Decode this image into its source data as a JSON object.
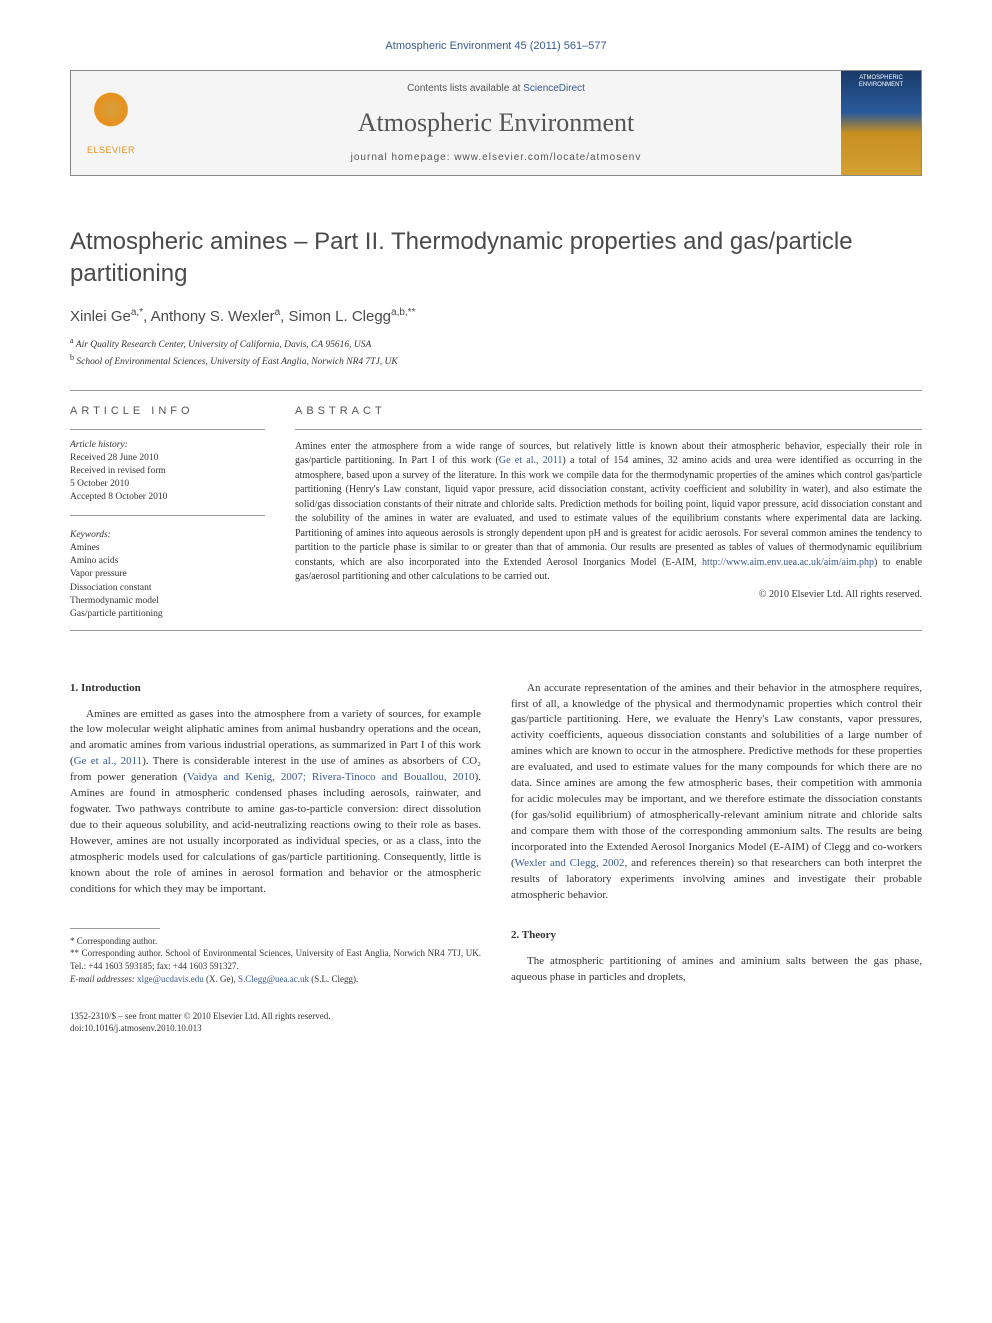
{
  "header": {
    "citation": "Atmospheric Environment 45 (2011) 561–577",
    "contents_prefix": "Contents lists available at ",
    "contents_link": "ScienceDirect",
    "journal_name": "Atmospheric Environment",
    "homepage_prefix": "journal homepage: ",
    "homepage_url": "www.elsevier.com/locate/atmosenv",
    "elsevier_text": "ELSEVIER",
    "cover_text": "ATMOSPHERIC ENVIRONMENT"
  },
  "title": "Atmospheric amines – Part II. Thermodynamic properties and gas/particle partitioning",
  "authors_html": "Xinlei Ge<sup>a,*</sup>, Anthony S. Wexler<sup>a</sup>, Simon L. Clegg<sup>a,b,**</sup>",
  "affiliations": {
    "a": "Air Quality Research Center, University of California, Davis, CA 95616, USA",
    "b": "School of Environmental Sciences, University of East Anglia, Norwich NR4 7TJ, UK"
  },
  "info": {
    "article_info_label": "ARTICLE INFO",
    "abstract_label": "ABSTRACT",
    "history_label": "Article history:",
    "history": {
      "received": "Received 28 June 2010",
      "revised1": "Received in revised form",
      "revised2": "5 October 2010",
      "accepted": "Accepted 8 October 2010"
    },
    "keywords_label": "Keywords:",
    "keywords": [
      "Amines",
      "Amino acids",
      "Vapor pressure",
      "Dissociation constant",
      "Thermodynamic model",
      "Gas/particle partitioning"
    ]
  },
  "abstract": {
    "text_parts": [
      "Amines enter the atmosphere from a wide range of sources, but relatively little is known about their atmospheric behavior, especially their role in gas/particle partitioning. In Part I of this work (",
      ") a total of 154 amines, 32 amino acids and urea were identified as occurring in the atmosphere, based upon a survey of the literature. In this work we compile data for the thermodynamic properties of the amines which control gas/particle partitioning (Henry's Law constant, liquid vapor pressure, acid dissociation constant, activity coefficient and solubility in water), and also estimate the solid/gas dissociation constants of their nitrate and chloride salts. Prediction methods for boiling point, liquid vapor pressure, acid dissociation constant and the solubility of the amines in water are evaluated, and used to estimate values of the equilibrium constants where experimental data are lacking. Partitioning of amines into aqueous aerosols is strongly dependent upon pH and is greatest for acidic aerosols. For several common amines the tendency to partition to the particle phase is similar to or greater than that of ammonia. Our results are presented as tables of values of thermodynamic equilibrium constants, which are also incorporated into the Extended Aerosol Inorganics Model (E-AIM, ",
      ") to enable gas/aerosol partitioning and other calculations to be carried out."
    ],
    "ref1": "Ge et al., 2011",
    "url": "http://www.aim.env.uea.ac.uk/aim/aim.php",
    "copyright": "© 2010 Elsevier Ltd. All rights reserved."
  },
  "body": {
    "section1_heading": "1. Introduction",
    "section1_p1_parts": [
      "Amines are emitted as gases into the atmosphere from a variety of sources, for example the low molecular weight aliphatic amines from animal husbandry operations and the ocean, and aromatic amines from various industrial operations, as summarized in Part I of this work (",
      "). There is considerable interest in the use of amines as absorbers of CO₂ from power generation (",
      "). Amines are found in atmospheric condensed phases including aerosols, rainwater, and fogwater. Two pathways contribute to amine gas-to-particle conversion: direct dissolution due to their aqueous solubility, and acid-neutralizing reactions owing to their role as bases. However, amines are not usually incorporated as individual species, or as a class, into the atmospheric models used for calculations of gas/particle partitioning. Consequently, little is known about the role of amines in aerosol formation and behavior or the atmospheric conditions for which they may be important."
    ],
    "s1_ref1": "Ge et al., 2011",
    "s1_ref2": "Vaidya and Kenig, 2007; Rivera-Tinoco and Bouallou, 2010",
    "section1_p2_parts": [
      "An accurate representation of the amines and their behavior in the atmosphere requires, first of all, a knowledge of the physical and thermodynamic properties which control their gas/particle partitioning. Here, we evaluate the Henry's Law constants, vapor pressures, activity coefficients, aqueous dissociation constants and solubilities of a large number of amines which are known to occur in the atmosphere. Predictive methods for these properties are evaluated, and used to estimate values for the many compounds for which there are no data. Since amines are among the few atmospheric bases, their competition with ammonia for acidic molecules may be important, and we therefore estimate the dissociation constants (for gas/solid equilibrium) of atmospherically-relevant aminium nitrate and chloride salts and compare them with those of the corresponding ammonium salts. The results are being incorporated into the Extended Aerosol Inorganics Model (E-AIM) of Clegg and co-workers (",
      ", and references therein) so that researchers can both interpret the results of laboratory experiments involving amines and investigate their probable atmospheric behavior."
    ],
    "s1_ref3": "Wexler and Clegg, 2002",
    "section2_heading": "2. Theory",
    "section2_p1": "The atmospheric partitioning of amines and aminium salts between the gas phase, aqueous phase in particles and droplets,"
  },
  "footnotes": {
    "f1": "* Corresponding author.",
    "f2": "** Corresponding author. School of Environmental Sciences, University of East Anglia, Norwich NR4 7TJ, UK. Tel.: +44 1603 593185; fax: +44 1603 591327.",
    "email_label": "E-mail addresses: ",
    "email1": "xlge@ucdavis.edu",
    "email1_who": " (X. Ge), ",
    "email2": "S.Clegg@uea.ac.uk",
    "email2_who": " (S.L. Clegg)."
  },
  "footer": {
    "line1": "1352-2310/$ – see front matter © 2010 Elsevier Ltd. All rights reserved.",
    "line2": "doi:10.1016/j.atmosenv.2010.10.013"
  },
  "colors": {
    "link": "#3a5a8c",
    "text": "#333333",
    "elsevier_orange": "#e8901c"
  }
}
